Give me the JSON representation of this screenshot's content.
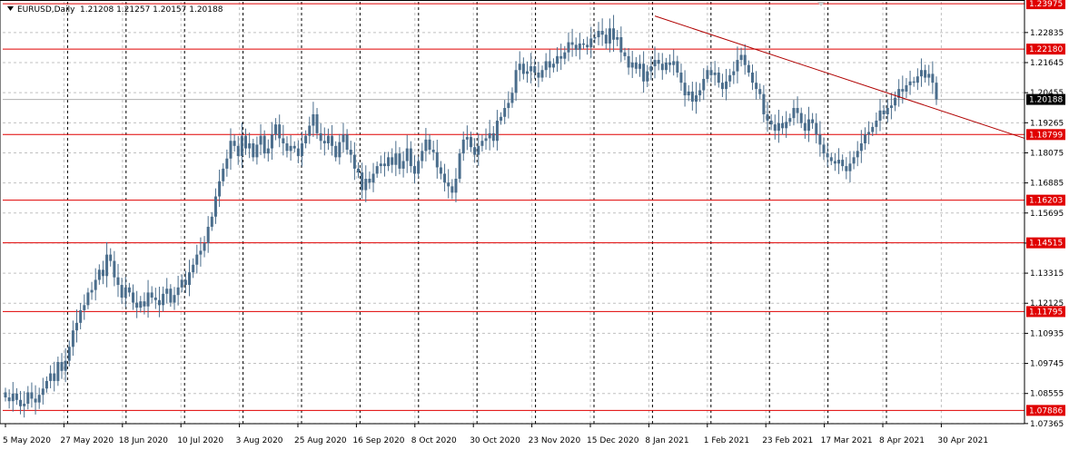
{
  "chart_data": {
    "type": "candlestick",
    "symbol": "EURUSD,Daily",
    "ohlc_header": "1.21208 1.21257 1.20157 1.20188",
    "current_price": "1.20188",
    "ylim": [
      1.0736,
      1.2405
    ],
    "y_ticks": [
      "1.22835",
      "1.21645",
      "1.20455",
      "1.19265",
      "1.18075",
      "1.16885",
      "1.15695",
      "1.14505",
      "1.13315",
      "1.12125",
      "1.10935",
      "1.09745",
      "1.08555",
      "1.07365"
    ],
    "x_labels": [
      "5 May 2020",
      "27 May 2020",
      "18 Jun 2020",
      "10 Jul 2020",
      "3 Aug 2020",
      "25 Aug 2020",
      "16 Sep 2020",
      "8 Oct 2020",
      "30 Oct 2020",
      "23 Nov 2020",
      "15 Dec 2020",
      "8 Jan 2021",
      "1 Feb 2021",
      "23 Feb 2021",
      "17 Mar 2021",
      "8 Apr 2021",
      "30 Apr 2021"
    ],
    "levels": [
      "1.23975",
      "1.22180",
      "1.18799",
      "1.16203",
      "1.14515",
      "1.11795",
      "1.07886"
    ],
    "trendline": {
      "start_date": "2021-01-06",
      "start_price": 1.2349,
      "end_price": 1.1865
    },
    "series_close": [
      1.084,
      1.0825,
      1.0855,
      1.083,
      1.0805,
      1.0815,
      1.086,
      1.0835,
      1.082,
      1.085,
      1.0875,
      1.0905,
      1.0935,
      1.0905,
      1.098,
      1.0945,
      1.0985,
      1.104,
      1.1105,
      1.1135,
      1.1185,
      1.1205,
      1.1255,
      1.1265,
      1.1305,
      1.1345,
      1.132,
      1.1405,
      1.138,
      1.1315,
      1.1285,
      1.1235,
      1.1275,
      1.1255,
      1.1215,
      1.1195,
      1.122,
      1.12,
      1.1255,
      1.1235,
      1.1225,
      1.1205,
      1.125,
      1.127,
      1.1215,
      1.1245,
      1.1275,
      1.1305,
      1.1285,
      1.1335,
      1.1365,
      1.1405,
      1.142,
      1.145,
      1.1515,
      1.1555,
      1.1635,
      1.1695,
      1.1745,
      1.1785,
      1.1855,
      1.1835,
      1.1795,
      1.1875,
      1.1825,
      1.1845,
      1.179,
      1.184,
      1.1875,
      1.1805,
      1.1825,
      1.188,
      1.192,
      1.1865,
      1.1845,
      1.1815,
      1.1835,
      1.1825,
      1.1795,
      1.1845,
      1.1875,
      1.1915,
      1.196,
      1.1885,
      1.1855,
      1.1845,
      1.1875,
      1.1835,
      1.179,
      1.185,
      1.188,
      1.182,
      1.18,
      1.1745,
      1.173,
      1.166,
      1.1705,
      1.169,
      1.1725,
      1.1755,
      1.1765,
      1.1755,
      1.179,
      1.176,
      1.1805,
      1.1745,
      1.1775,
      1.1825,
      1.1755,
      1.1725,
      1.1775,
      1.1815,
      1.186,
      1.182,
      1.181,
      1.175,
      1.1725,
      1.169,
      1.1675,
      1.165,
      1.1705,
      1.1805,
      1.186,
      1.187,
      1.183,
      1.18,
      1.1835,
      1.1855,
      1.1865,
      1.1885,
      1.1855,
      1.1935,
      1.195,
      1.1985,
      1.2005,
      1.2045,
      1.2135,
      1.216,
      1.212,
      1.213,
      1.215,
      1.2125,
      1.2105,
      1.2135,
      1.217,
      1.2145,
      1.216,
      1.219,
      1.218,
      1.2205,
      1.2245,
      1.2235,
      1.2215,
      1.224,
      1.2235,
      1.2225,
      1.226,
      1.2265,
      1.229,
      1.2275,
      1.224,
      1.23,
      1.2255,
      1.2265,
      1.2205,
      1.219,
      1.2145,
      1.2165,
      1.214,
      1.216,
      1.209,
      1.213,
      1.215,
      1.2175,
      1.216,
      1.2135,
      1.2165,
      1.2155,
      1.217,
      1.2125,
      1.2085,
      1.2035,
      1.205,
      1.201,
      1.2035,
      1.2055,
      1.21,
      1.2135,
      1.2115,
      1.2125,
      1.2085,
      1.206,
      1.209,
      1.2115,
      1.213,
      1.2175,
      1.2195,
      1.2155,
      1.2125,
      1.2085,
      1.206,
      1.204,
      1.196,
      1.1935,
      1.192,
      1.1895,
      1.1925,
      1.1905,
      1.193,
      1.1945,
      1.1985,
      1.1965,
      1.1925,
      1.1895,
      1.194,
      1.1925,
      1.188,
      1.184,
      1.1805,
      1.179,
      1.1775,
      1.1765,
      1.178,
      1.1755,
      1.1735,
      1.1765,
      1.179,
      1.1815,
      1.1845,
      1.188,
      1.189,
      1.191,
      1.1935,
      1.1975,
      1.196,
      1.1985,
      1.1995,
      1.2025,
      1.206,
      1.205,
      1.2075,
      1.209,
      1.2085,
      1.211,
      1.2135,
      1.2105,
      1.212,
      1.2085,
      1.2019
    ]
  }
}
